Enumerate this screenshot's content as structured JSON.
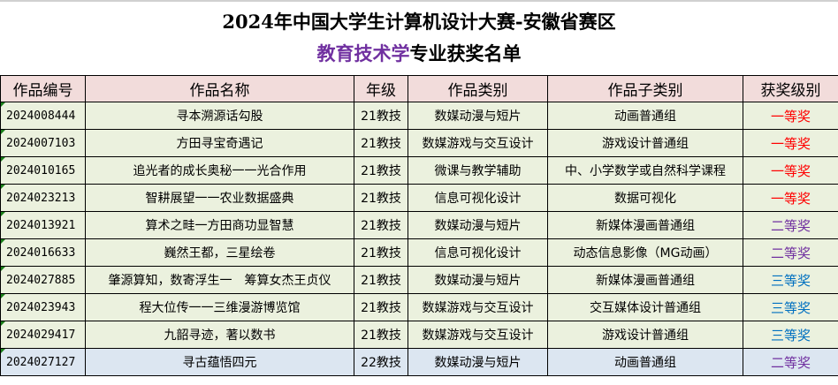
{
  "title": {
    "line1": "2024年中国大学生计算机设计大赛-安徽省赛区",
    "line2_highlight": "教育技术学",
    "line2_rest": "专业获奖名单"
  },
  "colors": {
    "first_prize": "#ff0000",
    "second_prize": "#7030a0",
    "third_prize": "#0070c0",
    "header_bg": "#f2dcdb",
    "row_bg": "#ebf1de",
    "last_row_bg": "#dce6f1"
  },
  "table": {
    "headers": [
      "作品编号",
      "作品名称",
      "年级",
      "作品类别",
      "作品子类别",
      "获奖级别"
    ],
    "rows": [
      {
        "id": "2024008444",
        "name": "寻本溯源话勾股",
        "grade": "21教技",
        "category": "数媒动漫与短片",
        "subcategory": "动画普通组",
        "award": "一等奖",
        "level": 1
      },
      {
        "id": "2024007103",
        "name": "方田寻宝奇遇记",
        "grade": "21教技",
        "category": "数媒游戏与交互设计",
        "subcategory": "游戏设计普通组",
        "award": "一等奖",
        "level": 1
      },
      {
        "id": "2024010165",
        "name": "追光者的成长奥秘一一光合作用",
        "grade": "21教技",
        "category": "微课与教学辅助",
        "subcategory": "中、小学数学或自然科学课程",
        "award": "一等奖",
        "level": 1
      },
      {
        "id": "2024023213",
        "name": "智耕展望一一农业数据盛典",
        "grade": "21教技",
        "category": "信息可视化设计",
        "subcategory": "数据可视化",
        "award": "一等奖",
        "level": 1
      },
      {
        "id": "2024013921",
        "name": "算术之畦一方田商功显智慧",
        "grade": "21教技",
        "category": "数媒动漫与短片",
        "subcategory": "新媒体漫画普通组",
        "award": "二等奖",
        "level": 2
      },
      {
        "id": "2024016633",
        "name": "巍然王都，三星绘卷",
        "grade": "21教技",
        "category": "信息可视化设计",
        "subcategory": "动态信息影像（MG动画）",
        "award": "二等奖",
        "level": 2
      },
      {
        "id": "2024027885",
        "name": "肇源算知，数寄浮生一　筹算女杰王贞仪",
        "grade": "21教技",
        "category": "数媒动漫与短片",
        "subcategory": "新媒体漫画普通组",
        "award": "三等奖",
        "level": 3
      },
      {
        "id": "2024023943",
        "name": "程大位传一一三维漫游博览馆",
        "grade": "21教技",
        "category": "数媒游戏与交互设计",
        "subcategory": "交互媒体设计普通组",
        "award": "三等奖",
        "level": 3
      },
      {
        "id": "2024029417",
        "name": "九韶寻迹，著以数书",
        "grade": "21教技",
        "category": "数媒游戏与交互设计",
        "subcategory": "游戏设计普通组",
        "award": "三等奖",
        "level": 3
      },
      {
        "id": "2024027127",
        "name": "寻古蕴悟四元",
        "grade": "22教技",
        "category": "数媒动漫与短片",
        "subcategory": "动画普通组",
        "award": "二等奖",
        "level": 2
      }
    ]
  }
}
